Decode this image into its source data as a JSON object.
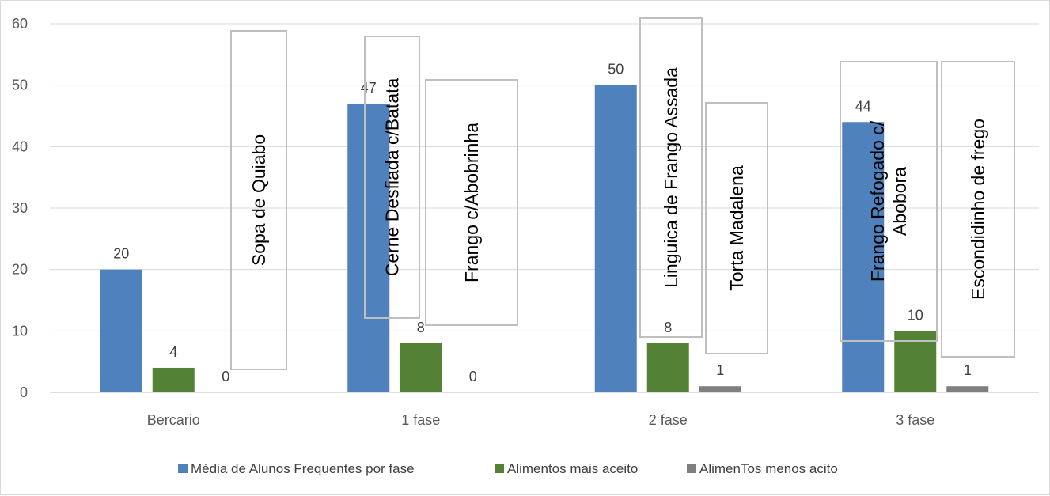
{
  "chart_data": {
    "type": "bar",
    "categories": [
      "Bercario",
      "1 fase",
      "2 fase",
      "3 fase"
    ],
    "series": [
      {
        "name": "Média de Alunos Frequentes por fase",
        "values": [
          20,
          47,
          50,
          44
        ],
        "color": "#4f81bd"
      },
      {
        "name": "Alimentos mais aceito",
        "values": [
          4,
          8,
          8,
          10
        ],
        "color": "#538135"
      },
      {
        "name": "AlimenTos menos acito",
        "values": [
          0,
          0,
          1,
          1
        ],
        "color": "#7f7f7f"
      }
    ],
    "ylim": [
      0,
      60
    ],
    "yticks": [
      0,
      10,
      20,
      30,
      40,
      50,
      60
    ],
    "grid": true,
    "legend_position": "bottom",
    "annotations": [
      {
        "category": "Bercario",
        "lines": [
          "Sopa de Quiabo"
        ]
      },
      {
        "category": "1 fase",
        "lines": [
          "Cerne Desfiada c/Batata"
        ]
      },
      {
        "category": "1 fase",
        "lines": [
          "Frango c/Abobrinha"
        ]
      },
      {
        "category": "2 fase",
        "lines": [
          "Linguica de Frango Assada"
        ]
      },
      {
        "category": "2 fase",
        "lines": [
          "Torta Madalena"
        ]
      },
      {
        "category": "3 fase",
        "lines": [
          "Frango Refogado c/",
          "Abobora"
        ]
      },
      {
        "category": "3 fase",
        "lines": [
          "Escondidinho de frego"
        ]
      }
    ]
  }
}
